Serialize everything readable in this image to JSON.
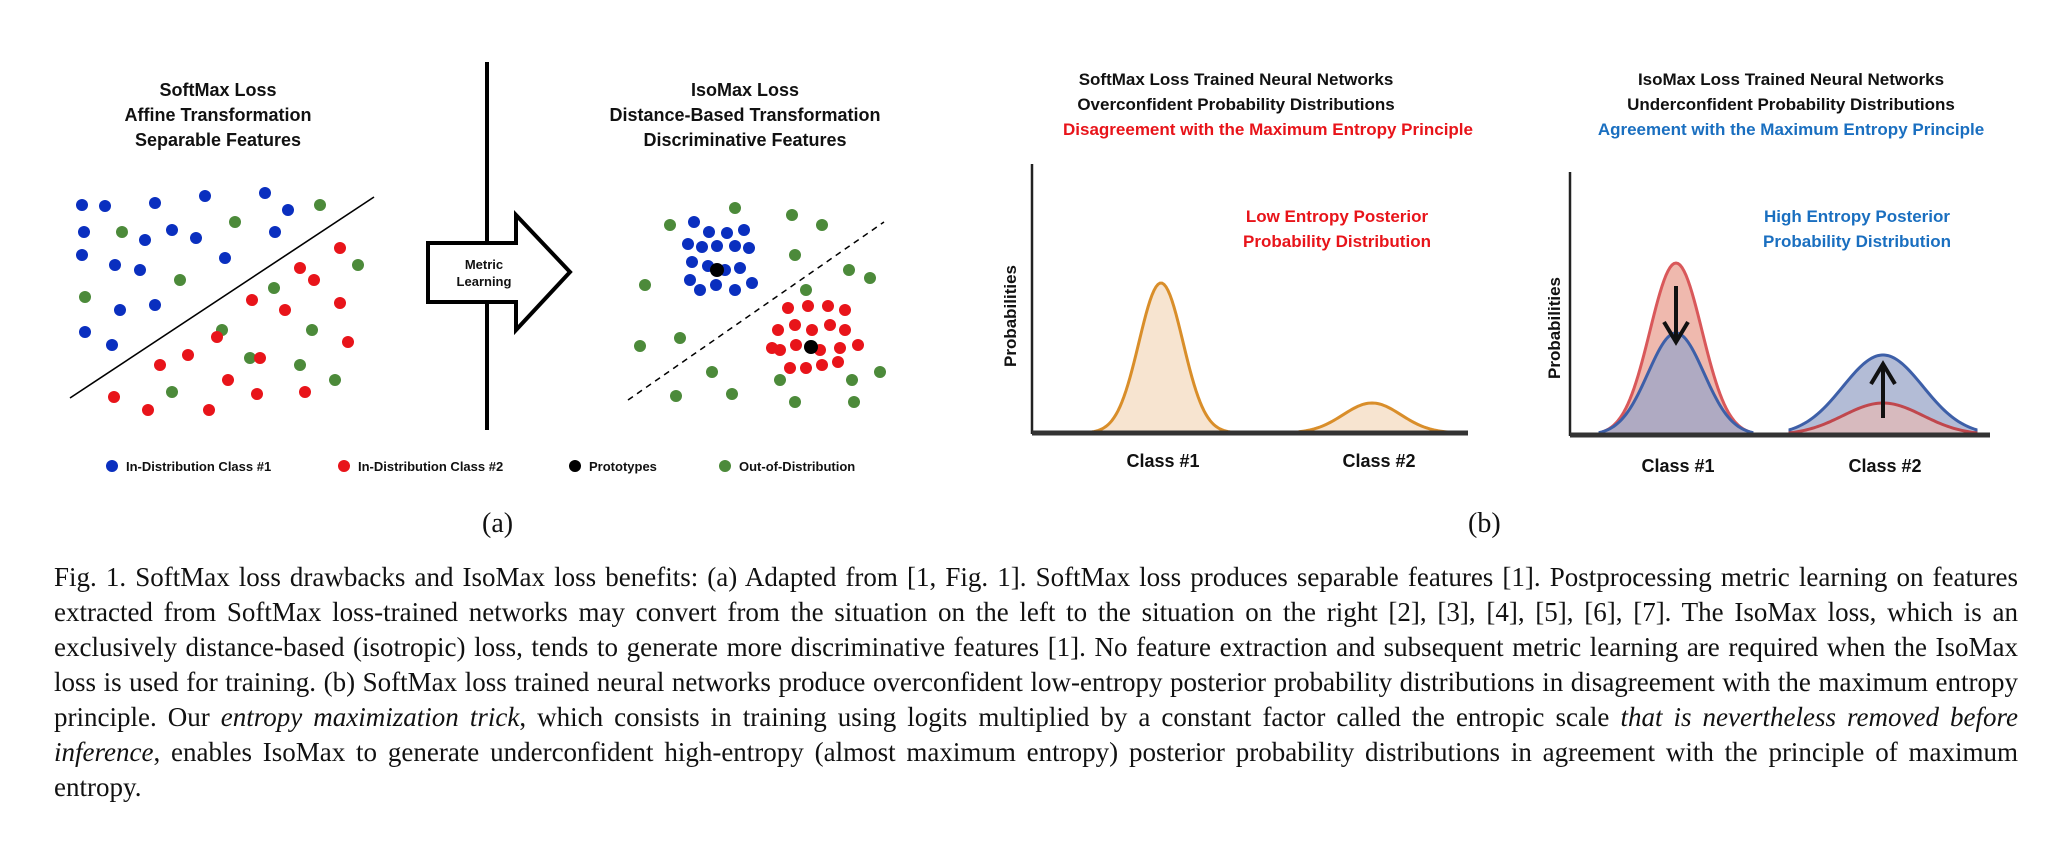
{
  "panel_a": {
    "label": "(a)",
    "softmax": {
      "title": [
        "SoftMax Loss",
        "Affine Transformation",
        "Separable Features"
      ]
    },
    "isomax": {
      "title": [
        "IsoMax Loss",
        "Distance-Based Transformation",
        "Discriminative Features"
      ]
    },
    "arrow_label": [
      "Metric",
      "Learning"
    ],
    "legend": [
      {
        "label": "In-Distribution Class #1",
        "color": "#0a2fbf"
      },
      {
        "label": "In-Distribution Class #2",
        "color": "#e8141a"
      },
      {
        "label": "Prototypes",
        "color": "#000000"
      },
      {
        "label": "Out-of-Distribution",
        "color": "#4c8a3a"
      }
    ]
  },
  "panel_b": {
    "label": "(b)",
    "softmax_plot": {
      "title": [
        "SoftMax Loss Trained Neural Networks",
        "Overconfident Probability Distributions"
      ],
      "title_highlight": "Disagreement with the Maximum Entropy Principle",
      "annotation": [
        "Low Entropy Posterior",
        "Probability Distribution"
      ],
      "ylabel": "Probabilities",
      "xticks": [
        "Class #1",
        "Class #2"
      ]
    },
    "isomax_plot": {
      "title": [
        "IsoMax Loss Trained Neural Networks",
        "Underconfident Probability Distributions"
      ],
      "title_highlight": "Agreement with the Maximum Entropy Principle",
      "annotation": [
        "High Entropy Posterior",
        "Probability Distribution"
      ],
      "ylabel": "Probabilities",
      "xticks": [
        "Class #1",
        "Class #2"
      ]
    }
  },
  "colors": {
    "red": "#e8141a",
    "blue": "#1a6fc0",
    "orange": "#d98e2a",
    "orange_fill": "#f7e4d0",
    "red_curve": "#d9585a",
    "red_fill": "#efb9ae",
    "blue_curve": "#3d5fa8",
    "blue_fill": "#9aa6c8"
  },
  "caption": {
    "part1": "Fig. 1.  SoftMax loss drawbacks and IsoMax loss benefits: (a) Adapted from [1, Fig. 1]. SoftMax loss produces separable features [1]. Postprocessing metric learning on features extracted from SoftMax loss-trained networks may convert from the situation on the left to the situation on the right [2], [3], [4], [5], [6], [7]. The IsoMax loss, which is an exclusively distance-based (isotropic) loss, tends to generate more discriminative features [1]. No feature extraction and subsequent metric learning are required when the IsoMax loss is used for training. (b) SoftMax loss trained neural networks produce overconfident low-entropy posterior probability distributions in disagreement with the maximum entropy principle. Our ",
    "italic1": "entropy maximization trick",
    "part2": ", which consists in training using logits multiplied by a constant factor called the entropic scale ",
    "italic2": "that is nevertheless removed before inference",
    "part3": ", enables IsoMax to generate underconfident high-entropy (almost maximum entropy) posterior probability distributions in agreement with the principle of maximum entropy."
  }
}
